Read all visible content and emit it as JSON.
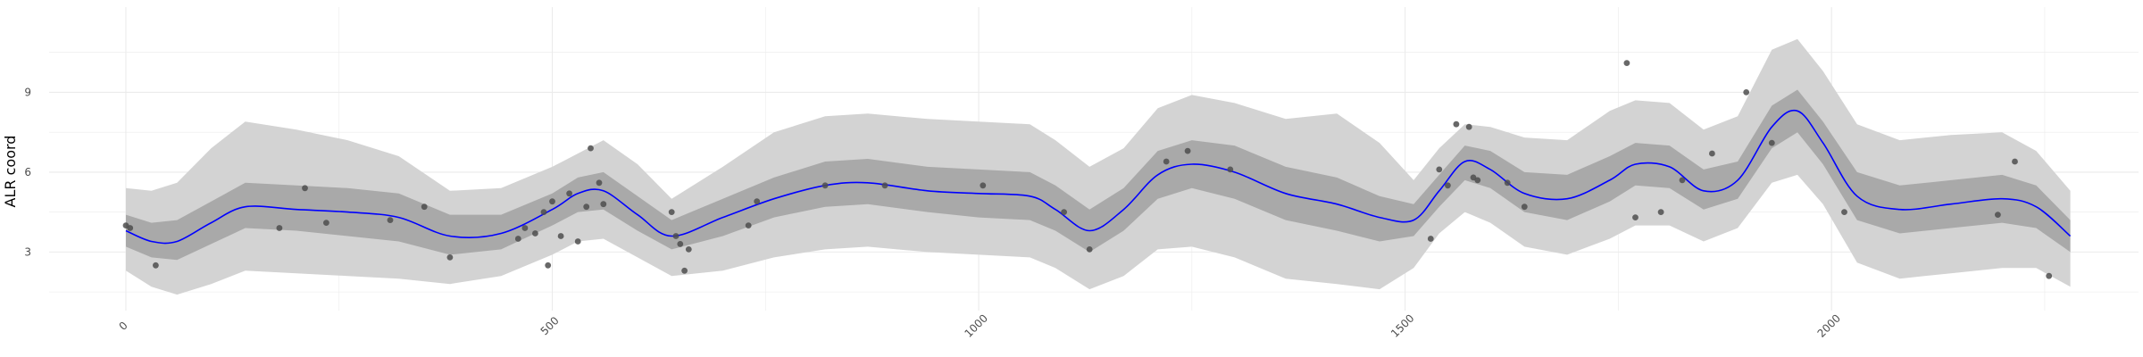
{
  "chart_data": {
    "type": "line",
    "title": "",
    "xlabel": "",
    "ylabel": "ALR coord",
    "xlim": [
      -90,
      2360
    ],
    "ylim": [
      0.8,
      12.2
    ],
    "x_ticks": [
      0,
      500,
      1000,
      1500,
      2000
    ],
    "x_tick_labels": [
      "0",
      "500",
      "1000",
      "1500",
      "2000"
    ],
    "y_ticks": [
      3,
      6,
      9
    ],
    "y_tick_labels": [
      "3",
      "6",
      "9"
    ],
    "grid": true,
    "colors": {
      "mean_line": "#0000ff",
      "inner_band": "#a9a9a9",
      "outer_band": "#d3d3d3",
      "points": "#4d4d4d",
      "grid": "#ebebeb"
    },
    "series": [
      {
        "role": "mean",
        "x": [
          0,
          30,
          60,
          100,
          140,
          200,
          260,
          320,
          380,
          440,
          500,
          530,
          560,
          600,
          640,
          700,
          760,
          820,
          870,
          940,
          1000,
          1060,
          1090,
          1130,
          1170,
          1210,
          1250,
          1300,
          1360,
          1420,
          1470,
          1510,
          1540,
          1570,
          1600,
          1640,
          1690,
          1740,
          1770,
          1810,
          1850,
          1890,
          1930,
          1960,
          1990,
          2030,
          2080,
          2140,
          2200,
          2240,
          2280
        ],
        "y": [
          3.8,
          3.4,
          3.4,
          4.1,
          4.7,
          4.6,
          4.5,
          4.3,
          3.6,
          3.7,
          4.6,
          5.2,
          5.3,
          4.4,
          3.6,
          4.3,
          5.0,
          5.5,
          5.6,
          5.3,
          5.2,
          5.1,
          4.6,
          3.8,
          4.6,
          5.9,
          6.3,
          6.0,
          5.2,
          4.8,
          4.3,
          4.2,
          5.3,
          6.4,
          6.1,
          5.2,
          5.0,
          5.7,
          6.3,
          6.2,
          5.3,
          5.7,
          7.7,
          8.3,
          7.1,
          5.1,
          4.6,
          4.8,
          5.0,
          4.7,
          3.6
        ]
      },
      {
        "role": "inner_band",
        "x": [
          0,
          30,
          60,
          100,
          140,
          200,
          260,
          320,
          380,
          440,
          500,
          530,
          560,
          600,
          640,
          700,
          760,
          820,
          870,
          940,
          1000,
          1060,
          1090,
          1130,
          1170,
          1210,
          1250,
          1300,
          1360,
          1420,
          1470,
          1510,
          1540,
          1570,
          1600,
          1640,
          1690,
          1740,
          1770,
          1810,
          1850,
          1890,
          1930,
          1960,
          1990,
          2030,
          2080,
          2140,
          2200,
          2240,
          2280
        ],
        "lower": [
          3.2,
          2.8,
          2.7,
          3.3,
          3.9,
          3.8,
          3.6,
          3.4,
          2.9,
          3.1,
          4.0,
          4.5,
          4.6,
          3.8,
          3.1,
          3.6,
          4.3,
          4.7,
          4.8,
          4.5,
          4.3,
          4.2,
          3.8,
          3.0,
          3.8,
          5.0,
          5.4,
          5.0,
          4.2,
          3.8,
          3.4,
          3.6,
          4.7,
          5.7,
          5.4,
          4.5,
          4.2,
          4.9,
          5.5,
          5.4,
          4.6,
          5.0,
          6.9,
          7.5,
          6.3,
          4.2,
          3.7,
          3.9,
          4.1,
          3.9,
          3.0
        ],
        "upper": [
          4.4,
          4.1,
          4.2,
          4.9,
          5.6,
          5.5,
          5.4,
          5.2,
          4.4,
          4.4,
          5.2,
          5.8,
          6.0,
          5.1,
          4.2,
          5.0,
          5.8,
          6.4,
          6.5,
          6.2,
          6.1,
          6.0,
          5.5,
          4.6,
          5.4,
          6.8,
          7.2,
          7.0,
          6.2,
          5.8,
          5.1,
          4.8,
          5.9,
          7.0,
          6.8,
          6.0,
          5.9,
          6.6,
          7.1,
          7.0,
          6.1,
          6.4,
          8.5,
          9.1,
          7.9,
          6.0,
          5.5,
          5.7,
          5.9,
          5.5,
          4.2
        ]
      },
      {
        "role": "outer_band",
        "x": [
          0,
          30,
          60,
          100,
          140,
          200,
          260,
          320,
          380,
          440,
          500,
          530,
          560,
          600,
          640,
          700,
          760,
          820,
          870,
          940,
          1000,
          1060,
          1090,
          1130,
          1170,
          1210,
          1250,
          1300,
          1360,
          1420,
          1470,
          1510,
          1540,
          1570,
          1600,
          1640,
          1690,
          1740,
          1770,
          1810,
          1850,
          1890,
          1930,
          1960,
          1990,
          2030,
          2080,
          2140,
          2200,
          2240,
          2280
        ],
        "lower": [
          2.3,
          1.7,
          1.4,
          1.8,
          2.3,
          2.2,
          2.1,
          2.0,
          1.8,
          2.1,
          2.9,
          3.4,
          3.5,
          2.8,
          2.1,
          2.3,
          2.8,
          3.1,
          3.2,
          3.0,
          2.9,
          2.8,
          2.4,
          1.6,
          2.1,
          3.1,
          3.2,
          2.8,
          2.0,
          1.8,
          1.6,
          2.4,
          3.7,
          4.5,
          4.1,
          3.2,
          2.9,
          3.5,
          4.0,
          4.0,
          3.4,
          3.9,
          5.6,
          5.9,
          4.8,
          2.6,
          2.0,
          2.2,
          2.4,
          2.4,
          1.7
        ],
        "upper": [
          5.4,
          5.3,
          5.6,
          6.9,
          7.9,
          7.6,
          7.2,
          6.6,
          5.3,
          5.4,
          6.2,
          6.7,
          7.2,
          6.3,
          5.0,
          6.2,
          7.5,
          8.1,
          8.2,
          8.0,
          7.9,
          7.8,
          7.2,
          6.2,
          6.9,
          8.4,
          8.9,
          8.6,
          8.0,
          8.2,
          7.1,
          5.7,
          6.9,
          7.8,
          7.7,
          7.3,
          7.2,
          8.3,
          8.7,
          8.6,
          7.6,
          8.1,
          10.6,
          11.0,
          9.8,
          7.8,
          7.2,
          7.4,
          7.5,
          6.8,
          5.3
        ]
      },
      {
        "role": "observations",
        "x": [
          0,
          5,
          35,
          180,
          210,
          235,
          310,
          350,
          380,
          460,
          468,
          480,
          490,
          495,
          500,
          510,
          520,
          530,
          540,
          545,
          555,
          560,
          640,
          645,
          650,
          655,
          660,
          730,
          740,
          820,
          890,
          1005,
          1100,
          1130,
          1220,
          1245,
          1295,
          1530,
          1540,
          1550,
          1560,
          1575,
          1580,
          1585,
          1620,
          1640,
          1760,
          1770,
          1800,
          1825,
          1860,
          1900,
          1930,
          2015,
          2195,
          2215,
          2255
        ],
        "y": [
          4.0,
          3.9,
          2.5,
          3.9,
          5.4,
          4.1,
          4.2,
          4.7,
          2.8,
          3.5,
          3.9,
          3.7,
          4.5,
          2.5,
          4.9,
          3.6,
          5.2,
          3.4,
          4.7,
          6.9,
          5.6,
          4.8,
          4.5,
          3.6,
          3.3,
          2.3,
          3.1,
          4.0,
          4.9,
          5.5,
          5.5,
          5.5,
          4.5,
          3.1,
          6.4,
          6.8,
          6.1,
          3.5,
          6.1,
          5.5,
          7.8,
          7.7,
          5.8,
          5.7,
          5.6,
          4.7,
          10.1,
          4.3,
          4.5,
          5.7,
          6.7,
          9.0,
          7.1,
          4.5,
          4.4,
          6.4,
          2.1
        ]
      }
    ]
  }
}
